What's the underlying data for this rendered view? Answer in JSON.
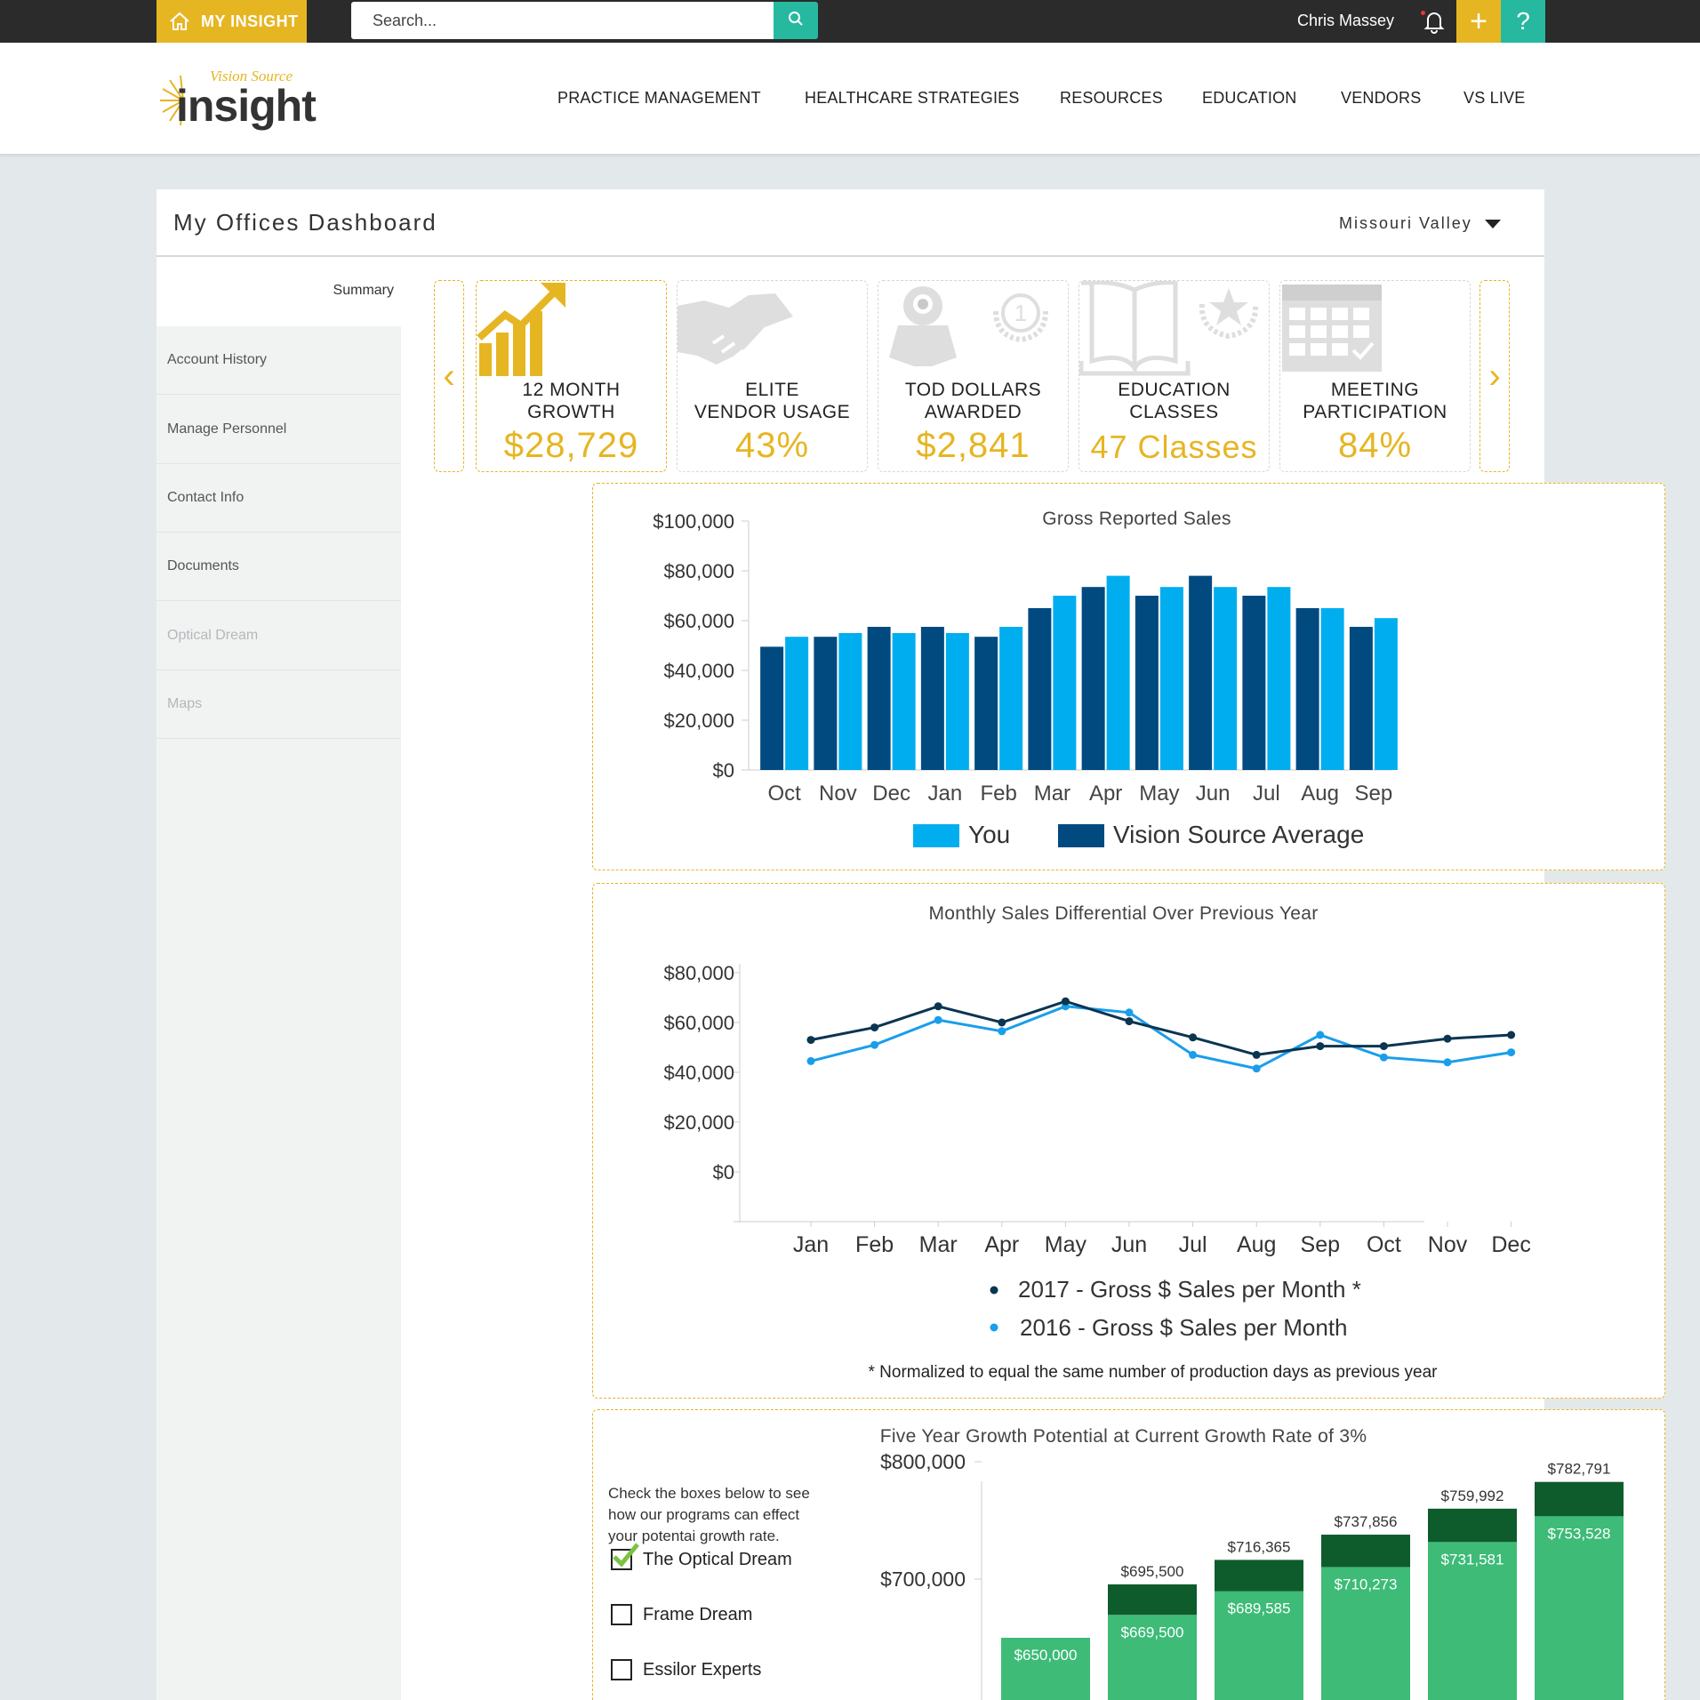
{
  "topbar": {
    "home_label": "MY INSIGHT",
    "search_placeholder": "Search...",
    "user_name": "Chris Massey",
    "plus_label": "+",
    "help_label": "?"
  },
  "brand": {
    "top": "Vision Source",
    "name": "insight"
  },
  "nav": [
    "PRACTICE MANAGEMENT",
    "HEALTHCARE STRATEGIES",
    "RESOURCES",
    "EDUCATION",
    "VENDORS",
    "VS LIVE"
  ],
  "dashboard": {
    "title": "My Offices Dashboard",
    "region": "Missouri Valley"
  },
  "sidebar": {
    "active": "Summary",
    "items": [
      "Account History",
      "Manage Personnel",
      "Contact Info",
      "Documents",
      "Optical Dream",
      "Maps"
    ]
  },
  "kpis": [
    {
      "label1": "12 MONTH",
      "label2": "GROWTH",
      "value": "$28,729",
      "icon": "growth-chart-icon"
    },
    {
      "label1": "ELITE",
      "label2": "VENDOR USAGE",
      "value": "43%",
      "icon": "handshake-icon"
    },
    {
      "label1": "TOD DOLLARS",
      "label2": "AWARDED",
      "value": "$2,841",
      "icon": "mascot-medal-icon"
    },
    {
      "label1": "EDUCATION",
      "label2": "CLASSES",
      "value": "47 Classes",
      "icon": "book-star-icon"
    },
    {
      "label1": "MEETING",
      "label2": "PARTICIPATION",
      "value": "84%",
      "icon": "calendar-icon"
    }
  ],
  "colors": {
    "gold": "#e6b522",
    "teal": "#26b9a0",
    "you": "#00aeef",
    "vs_avg": "#004a80",
    "line2017": "#0b3551",
    "line2016": "#1a9eea",
    "green_dark": "#0e5c2c",
    "green_light": "#3dbb77"
  },
  "chart_data": [
    {
      "type": "bar",
      "title": "Gross Reported Sales",
      "categories": [
        "Oct",
        "Nov",
        "Dec",
        "Jan",
        "Feb",
        "Mar",
        "Apr",
        "May",
        "Jun",
        "Jul",
        "Aug",
        "Sep"
      ],
      "series": [
        {
          "name": "Vision Source Average",
          "values": [
            49500,
            53500,
            57500,
            57500,
            53500,
            65000,
            73500,
            70000,
            78000,
            70000,
            65000,
            57500
          ]
        },
        {
          "name": "You",
          "values": [
            53500,
            55000,
            55000,
            55000,
            57500,
            70000,
            78000,
            73500,
            73500,
            73500,
            65000,
            61000
          ]
        }
      ],
      "yticks": [
        "$0",
        "$20,000",
        "$40,000",
        "$60,000",
        "$80,000",
        "$100,000"
      ],
      "ylim": [
        0,
        100000
      ],
      "legend": [
        "You",
        "Vision Source Average"
      ],
      "legend_position": "bottom"
    },
    {
      "type": "line",
      "title": "Monthly Sales Differential Over Previous Year",
      "categories": [
        "Jan",
        "Feb",
        "Mar",
        "Apr",
        "May",
        "Jun",
        "Jul",
        "Aug",
        "Sep",
        "Oct",
        "Nov",
        "Dec"
      ],
      "series": [
        {
          "name": "2017 - Gross $ Sales per Month *",
          "values": [
            53000,
            58000,
            66500,
            60000,
            68500,
            60500,
            54000,
            47000,
            50500,
            50500,
            53500,
            55000
          ]
        },
        {
          "name": "2016 - Gross $ Sales per Month",
          "values": [
            44500,
            51000,
            61000,
            56500,
            66500,
            64000,
            47000,
            41500,
            55000,
            46000,
            44000,
            48000
          ]
        }
      ],
      "yticks": [
        "$0",
        "$20,000",
        "$40,000",
        "$60,000",
        "$80,000"
      ],
      "ylim": [
        -20000,
        80000
      ],
      "footnote": "* Normalized to equal the same number of production days as previous year",
      "legend_position": "bottom"
    },
    {
      "type": "bar",
      "title": "Five Year Growth Potential at Current Growth Rate of 3%",
      "stacked": true,
      "base_values": [
        650000,
        669500,
        689585,
        710273,
        731581,
        753528
      ],
      "base_labels": [
        "$650,000",
        "$669,500",
        "$689,585",
        "$710,273",
        "$731,581",
        "$753,528"
      ],
      "total_values": [
        null,
        695500,
        716365,
        737856,
        759992,
        782791
      ],
      "total_labels": [
        "",
        "$695,500",
        "$716,365",
        "$737,856",
        "$759,992",
        "$782,791"
      ],
      "yticks": [
        "$700,000",
        "$800,000"
      ]
    }
  ],
  "growth": {
    "intro": "Check the boxes below to see how our programs can effect your potentai growth rate.",
    "options": [
      {
        "label": "The Optical Dream",
        "checked": true
      },
      {
        "label": "Frame Dream",
        "checked": false
      },
      {
        "label": "Essilor Experts",
        "checked": false
      }
    ]
  }
}
